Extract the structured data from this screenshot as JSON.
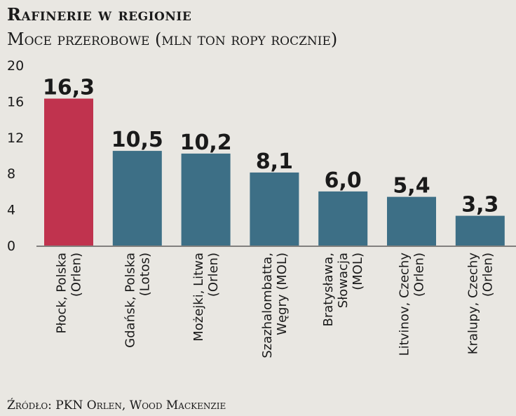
{
  "chart_data": {
    "type": "bar",
    "title": "Rafinerie w regionie",
    "subtitle": "Moce przerobowe (mln ton ropy rocznie)",
    "categories": [
      [
        "Płock, Polska",
        "(Orlen)"
      ],
      [
        "Gdańsk, Polska",
        "(Lotos)"
      ],
      [
        "Możejki, Litwa",
        "(Orlen)"
      ],
      [
        "Szazhalombatta,",
        "Węgry (MOL)"
      ],
      [
        "Bratysława,",
        "Słowacja",
        "(MOL)"
      ],
      [
        "Litvinov, Czechy",
        "(Orlen)"
      ],
      [
        "Kralupy, Czechy",
        "(Orlen)"
      ]
    ],
    "values": [
      16.3,
      10.5,
      10.2,
      8.1,
      6.0,
      5.4,
      3.3
    ],
    "value_labels": [
      "16,3",
      "10,5",
      "10,2",
      "8,1",
      "6,0",
      "5,4",
      "3,3"
    ],
    "bar_colors": [
      "#c0334e",
      "#3d6f86",
      "#3d6f86",
      "#3d6f86",
      "#3d6f86",
      "#3d6f86",
      "#3d6f86"
    ],
    "yticks": [
      "20",
      "16",
      "12",
      "8",
      "4",
      "0"
    ],
    "ytick_values": [
      20,
      16,
      12,
      8,
      4,
      0
    ],
    "ylim": [
      0,
      20
    ],
    "grid": false,
    "source": "Źródło: PKN Orlen, Wood Mackenzie"
  }
}
